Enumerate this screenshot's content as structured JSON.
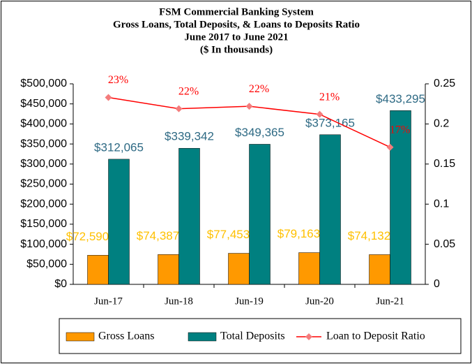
{
  "chart_data": {
    "type": "bar_line",
    "title": [
      "FSM Commercial Banking System",
      "Gross Loans, Total Deposits, &  Loans to Deposits Ratio",
      "June 2017 to June 2021",
      "($ In thousands)"
    ],
    "categories": [
      "Jun-17",
      "Jun-18",
      "Jun-19",
      "Jun-20",
      "Jun-21"
    ],
    "series": [
      {
        "name": "Gross Loans",
        "color": "#ff9900",
        "label_color": "#ffc000",
        "type": "bar",
        "values": [
          72590,
          74387,
          77453,
          79163,
          74132
        ],
        "value_labels": [
          "$72,590",
          "$74,387",
          "$77,453",
          "$79,163",
          "$74,132"
        ]
      },
      {
        "name": "Total Deposits",
        "color": "#008080",
        "label_color": "#2e6a84",
        "type": "bar",
        "values": [
          312065,
          339342,
          349365,
          373165,
          433295
        ],
        "value_labels": [
          "$312,065",
          "$339,342",
          "$349,365",
          "$373,165",
          "$433,295"
        ]
      },
      {
        "name": "Loan to Deposit Ratio",
        "color": "#ff0000",
        "marker_color": "#f47c7c",
        "label_color": "#ff0000",
        "type": "line",
        "axis": "y2",
        "values": [
          0.233,
          0.219,
          0.222,
          0.212,
          0.171
        ],
        "value_labels": [
          "23%",
          "22%",
          "22%",
          "21%",
          "17%"
        ]
      }
    ],
    "ylim": [
      0,
      500000
    ],
    "yticks": [
      {
        "value": 0,
        "label": "$0"
      },
      {
        "value": 50000,
        "label": "$50,000"
      },
      {
        "value": 100000,
        "label": "$100,000"
      },
      {
        "value": 150000,
        "label": "$150,000"
      },
      {
        "value": 200000,
        "label": "$200,000"
      },
      {
        "value": 250000,
        "label": "$250,000"
      },
      {
        "value": 300000,
        "label": "$300,000"
      },
      {
        "value": 350000,
        "label": "$350,000"
      },
      {
        "value": 400000,
        "label": "$400,000"
      },
      {
        "value": 450000,
        "label": "$450,000"
      },
      {
        "value": 500000,
        "label": "$500,000"
      }
    ],
    "y2lim": [
      0,
      0.25
    ],
    "y2ticks": [
      0,
      0.05,
      0.1,
      0.15,
      0.2,
      0.25
    ],
    "grid": false,
    "legend": "bottom"
  }
}
